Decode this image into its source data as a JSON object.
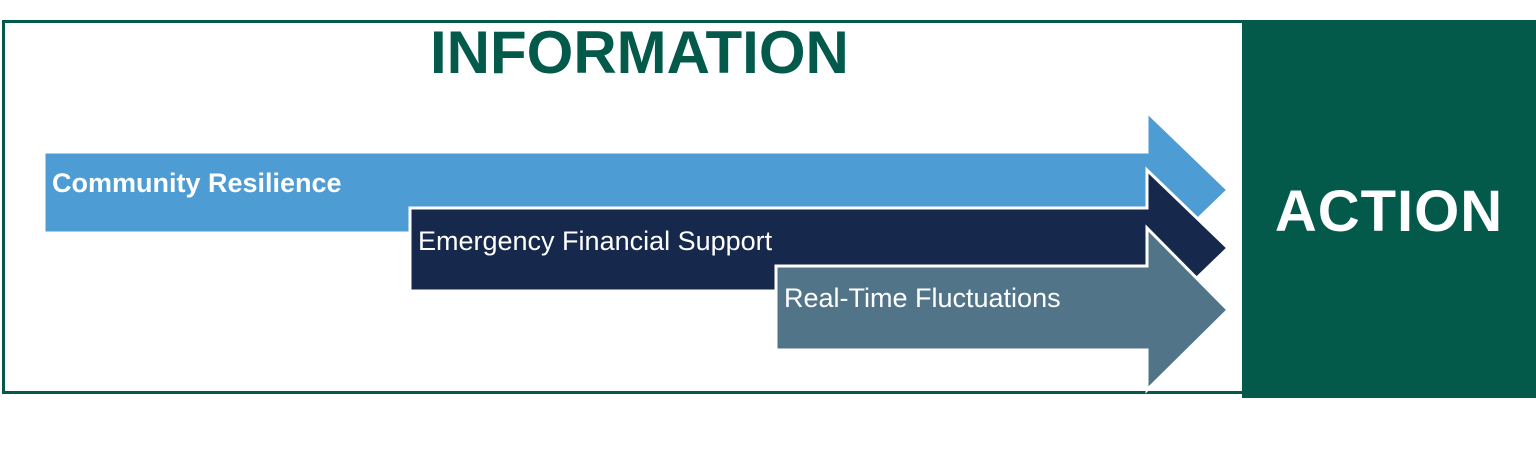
{
  "title": "INFORMATION",
  "action_label": "ACTION",
  "arrows": [
    {
      "label": "Community Resilience",
      "color": "#4d9cd4",
      "bold": true
    },
    {
      "label": "Emergency Financial Support",
      "color": "#16284b",
      "bold": false
    },
    {
      "label": "Real-Time Fluctuations",
      "color": "#527489",
      "bold": false
    }
  ],
  "colors": {
    "frame": "#035a4b",
    "action_bg": "#035a4b",
    "title": "#035a4b",
    "arrow_text": "#ffffff"
  }
}
